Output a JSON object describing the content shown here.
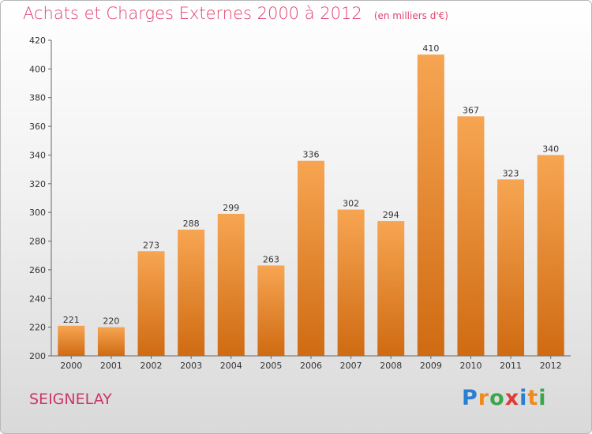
{
  "header": {
    "title": "Achats et Charges Externes 2000 à 2012",
    "unit": "(en milliers d'€)"
  },
  "footer": {
    "commune": "SEIGNELAY",
    "logo": [
      "P",
      "r",
      "o",
      "x",
      "i",
      "t",
      "i"
    ],
    "logo_colors": [
      "#2a7fd4",
      "#f08a1c",
      "#3aa84a",
      "#e03a3a",
      "#2a7fd4",
      "#f08a1c",
      "#3aa84a"
    ]
  },
  "chart_data": {
    "type": "bar",
    "categories": [
      "2000",
      "2001",
      "2002",
      "2003",
      "2004",
      "2005",
      "2006",
      "2007",
      "2008",
      "2009",
      "2010",
      "2011",
      "2012"
    ],
    "values": [
      221,
      220,
      273,
      288,
      299,
      263,
      336,
      302,
      294,
      410,
      367,
      323,
      340
    ],
    "ylim": [
      200,
      420
    ],
    "yticks": [
      200,
      220,
      240,
      260,
      280,
      300,
      320,
      340,
      360,
      380,
      400,
      420
    ],
    "grid": false,
    "bar_color_top": "#f7a552",
    "bar_color_bottom": "#cf6b12"
  }
}
